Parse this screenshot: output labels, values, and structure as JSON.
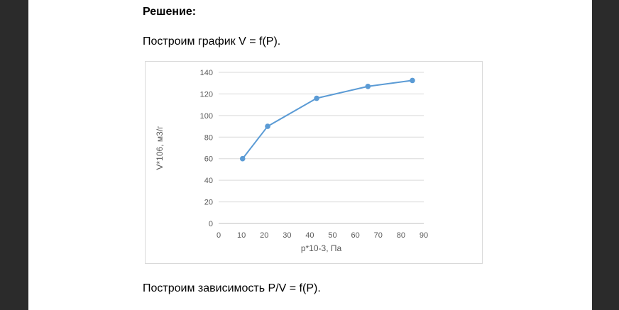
{
  "document": {
    "heading": "Решение:",
    "para1": "Построим график V = f(P).",
    "para2": "Построим зависимость P/V = f(P)."
  },
  "chart_data": {
    "type": "line",
    "title": "",
    "xlabel": "p*10-3, Па",
    "ylabel": "V*106, м3/г",
    "xlim": [
      0,
      90
    ],
    "ylim": [
      0,
      140
    ],
    "xticks": [
      0,
      10,
      20,
      30,
      40,
      50,
      60,
      70,
      80,
      90
    ],
    "yticks": [
      0,
      20,
      40,
      60,
      80,
      100,
      120,
      140
    ],
    "grid": "horizontal",
    "legend": "none",
    "series": [
      {
        "color": "#5b9bd5",
        "x": [
          10.5,
          21.5,
          43,
          65.5,
          85
        ],
        "y": [
          60,
          90,
          116,
          127,
          132.5
        ]
      }
    ]
  }
}
